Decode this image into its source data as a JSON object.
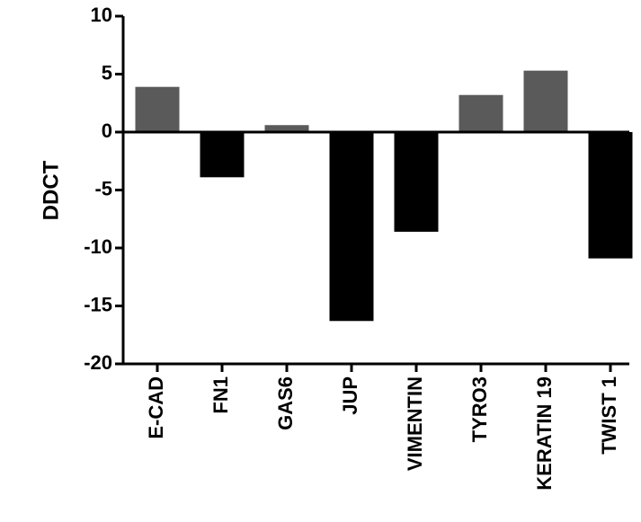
{
  "chart_data": {
    "type": "bar",
    "title": "",
    "xlabel": "",
    "ylabel": "DDCT",
    "ylim": [
      -20,
      10
    ],
    "yticks": [
      10,
      5,
      0,
      -5,
      -10,
      -15,
      -20
    ],
    "grid": false,
    "categories": [
      "E-CAD",
      "FN1",
      "GAS6",
      "JUP",
      "VIMENTIN",
      "TYRO3",
      "KERATIN 19",
      "TWIST 1"
    ],
    "values": [
      3.9,
      -3.9,
      0.6,
      -16.3,
      -8.6,
      3.2,
      5.3,
      -10.9
    ],
    "colors": {
      "positive": "#5a5a5a",
      "negative": "#000000",
      "axis": "#000000"
    }
  }
}
